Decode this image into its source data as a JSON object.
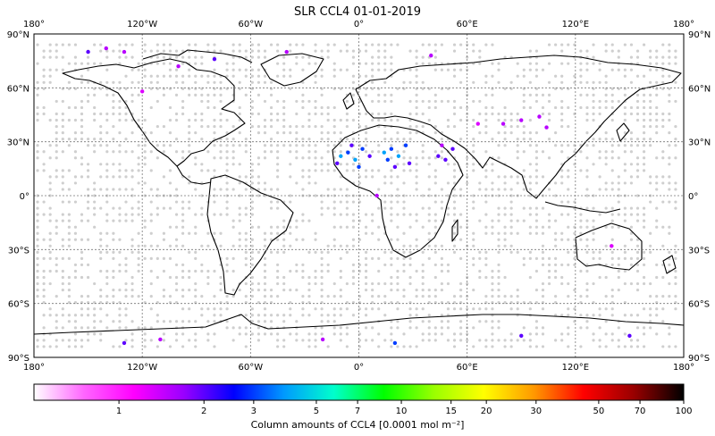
{
  "chart_data": {
    "type": "scatter",
    "title": "SLR CCL4 01-01-2019",
    "projection": "plate-carree",
    "xlim": [
      -180,
      180
    ],
    "ylim": [
      -90,
      90
    ],
    "x_ticks": [
      {
        "value": -180,
        "label": "180°"
      },
      {
        "value": -120,
        "label": "120°W"
      },
      {
        "value": -60,
        "label": "60°W"
      },
      {
        "value": 0,
        "label": "0°"
      },
      {
        "value": 60,
        "label": "60°E"
      },
      {
        "value": 120,
        "label": "120°E"
      },
      {
        "value": 180,
        "label": "180°"
      }
    ],
    "y_ticks": [
      {
        "value": 90,
        "label": "90°N"
      },
      {
        "value": 60,
        "label": "60°N"
      },
      {
        "value": 30,
        "label": "30°N"
      },
      {
        "value": 0,
        "label": "0°"
      },
      {
        "value": -30,
        "label": "30°S"
      },
      {
        "value": -60,
        "label": "60°S"
      },
      {
        "value": -90,
        "label": "90°S"
      }
    ],
    "grid": true,
    "colorbar": {
      "label": "Column amounts of CCL4 [0.0001 mol m⁻²]",
      "scale": "log",
      "range": [
        0.5,
        100
      ],
      "ticks": [
        "1",
        "2",
        "3",
        "5",
        "7",
        "10",
        "15",
        "20",
        "30",
        "50",
        "70",
        "100"
      ],
      "colors": [
        "#ffffff",
        "#ff66ff",
        "#ff00ff",
        "#9900ff",
        "#0000ff",
        "#0099ff",
        "#00ffcc",
        "#00ff00",
        "#99ff00",
        "#ffff00",
        "#ff9900",
        "#ff0000",
        "#990000",
        "#000000"
      ]
    },
    "points": [
      {
        "lon": -10,
        "lat": 22,
        "value": 4
      },
      {
        "lon": -6,
        "lat": 24,
        "value": 3
      },
      {
        "lon": -2,
        "lat": 20,
        "value": 4
      },
      {
        "lon": 2,
        "lat": 26,
        "value": 3
      },
      {
        "lon": -4,
        "lat": 28,
        "value": 2
      },
      {
        "lon": 0,
        "lat": 16,
        "value": 3
      },
      {
        "lon": -12,
        "lat": 18,
        "value": 2
      },
      {
        "lon": 6,
        "lat": 22,
        "value": 2
      },
      {
        "lon": 14,
        "lat": 24,
        "value": 4
      },
      {
        "lon": 18,
        "lat": 26,
        "value": 3
      },
      {
        "lon": 22,
        "lat": 22,
        "value": 4
      },
      {
        "lon": 26,
        "lat": 28,
        "value": 3
      },
      {
        "lon": 28,
        "lat": 18,
        "value": 2
      },
      {
        "lon": 20,
        "lat": 16,
        "value": 2
      },
      {
        "lon": 16,
        "lat": 20,
        "value": 3
      },
      {
        "lon": 44,
        "lat": 22,
        "value": 2
      },
      {
        "lon": 48,
        "lat": 20,
        "value": 2
      },
      {
        "lon": 52,
        "lat": 26,
        "value": 2
      },
      {
        "lon": 46,
        "lat": 28,
        "value": 1.5
      },
      {
        "lon": 80,
        "lat": 40,
        "value": 1.5
      },
      {
        "lon": 90,
        "lat": 42,
        "value": 1.5
      },
      {
        "lon": 100,
        "lat": 44,
        "value": 1.5
      },
      {
        "lon": 104,
        "lat": 38,
        "value": 1.5
      },
      {
        "lon": 66,
        "lat": 40,
        "value": 1.3
      },
      {
        "lon": -150,
        "lat": 80,
        "value": 2
      },
      {
        "lon": -140,
        "lat": 82,
        "value": 1.5
      },
      {
        "lon": -130,
        "lat": 80,
        "value": 1.5
      },
      {
        "lon": -100,
        "lat": 72,
        "value": 1.5
      },
      {
        "lon": -80,
        "lat": 76,
        "value": 2
      },
      {
        "lon": -40,
        "lat": 80,
        "value": 1.5
      },
      {
        "lon": 40,
        "lat": 78,
        "value": 1.5
      },
      {
        "lon": -120,
        "lat": 58,
        "value": 1.3
      },
      {
        "lon": -130,
        "lat": -82,
        "value": 2
      },
      {
        "lon": -110,
        "lat": -80,
        "value": 1.5
      },
      {
        "lon": -20,
        "lat": -80,
        "value": 1.5
      },
      {
        "lon": 20,
        "lat": -82,
        "value": 3
      },
      {
        "lon": 90,
        "lat": -78,
        "value": 2
      },
      {
        "lon": 150,
        "lat": -78,
        "value": 2
      },
      {
        "lon": 10,
        "lat": 0,
        "value": 1.5
      },
      {
        "lon": 140,
        "lat": -28,
        "value": 1.3
      }
    ]
  }
}
